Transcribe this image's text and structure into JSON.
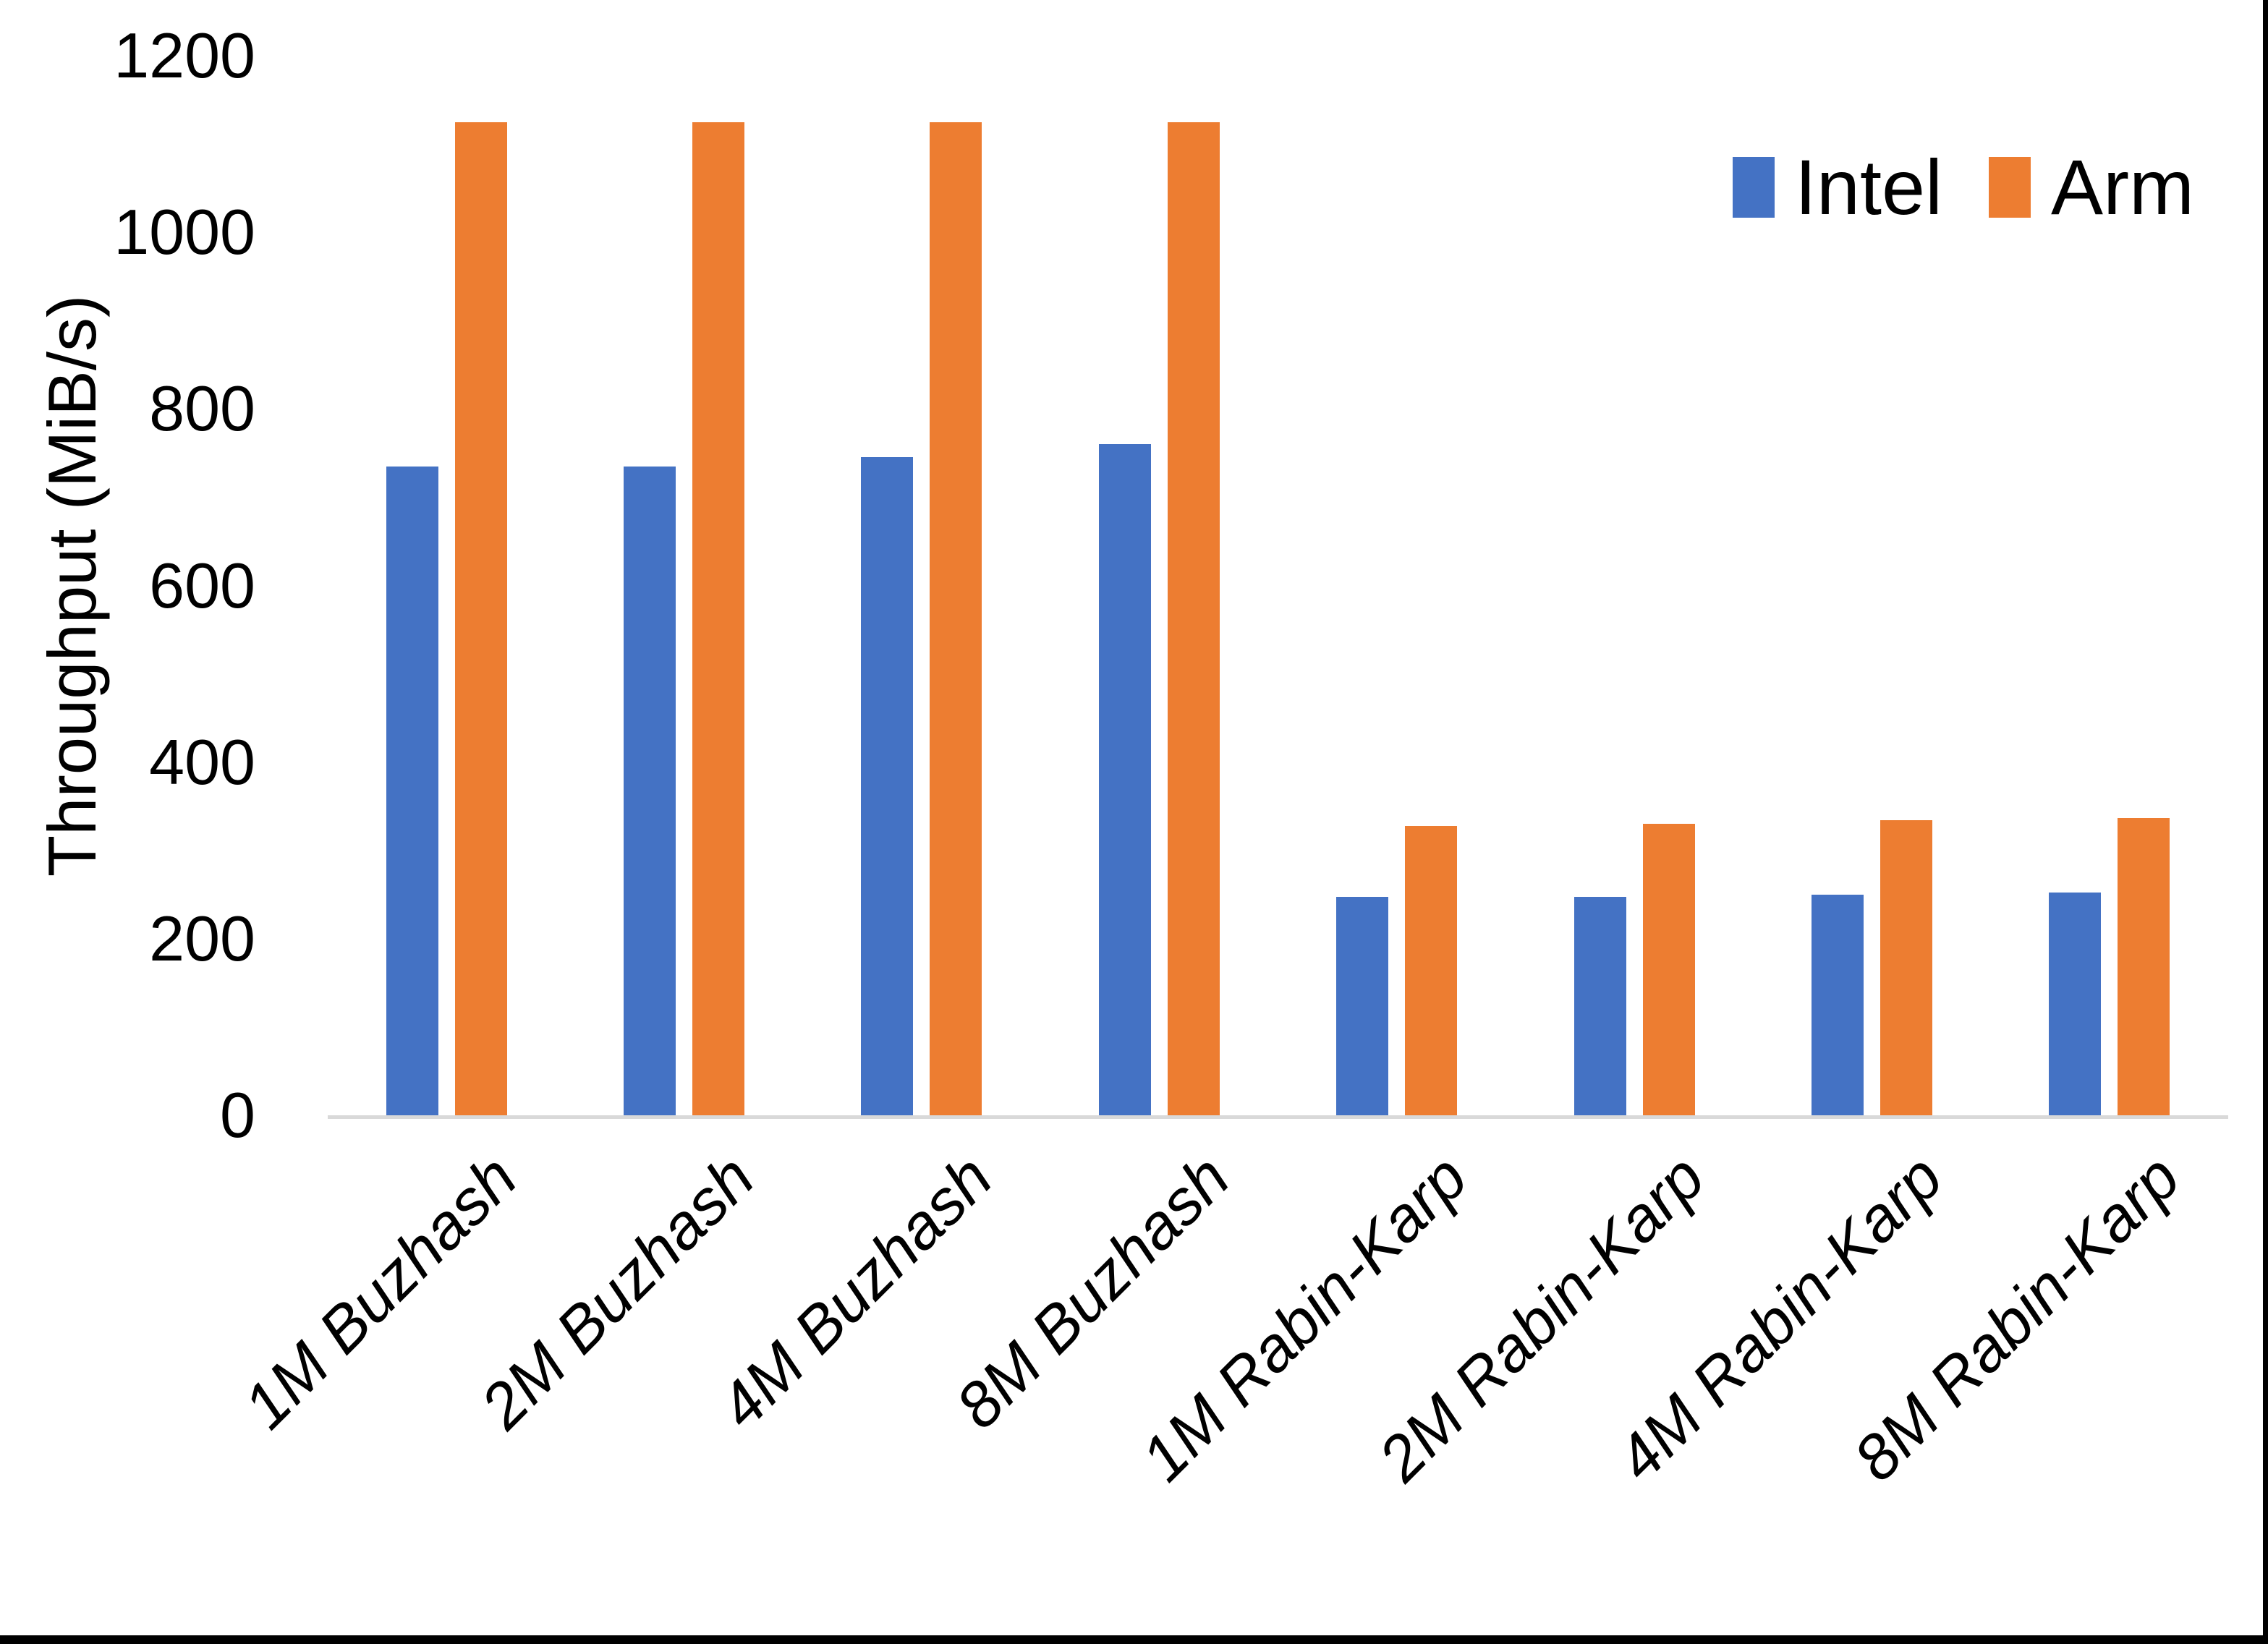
{
  "chart_data": {
    "type": "bar",
    "title": "",
    "categories": [
      "1M Buzhash",
      "2M Buzhash",
      "4M Buzhash",
      "8M Buzhash",
      "1M Rabin-Karp",
      "2M Rabin-Karp",
      "4M Rabin-Karp",
      "8M Rabin-Karp"
    ],
    "series": [
      {
        "name": "Intel",
        "color": "#4472C4",
        "values": [
          735,
          735,
          745,
          760,
          247,
          247,
          250,
          252
        ]
      },
      {
        "name": "Arm",
        "color": "#ED7D31",
        "values": [
          1125,
          1125,
          1125,
          1125,
          328,
          330,
          334,
          337
        ]
      }
    ],
    "xlabel": "",
    "ylabel": "Throughput (MiB/s)",
    "ylim": [
      0,
      1200
    ],
    "yticks": [
      0,
      200,
      400,
      600,
      800,
      1000,
      1200
    ],
    "grid": false,
    "legend_position": "top-right",
    "axis_line_color": "#D9D9D9",
    "text_color": "#000000"
  }
}
